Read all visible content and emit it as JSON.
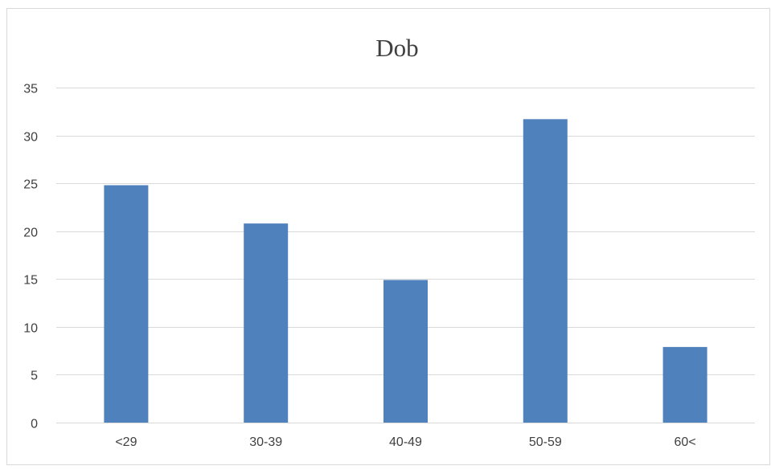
{
  "chart_data": {
    "type": "bar",
    "title": "Dob",
    "xlabel": "",
    "ylabel": "",
    "categories": [
      "<29",
      "30-39",
      "40-49",
      "50-59",
      "60<"
    ],
    "values": [
      24.8,
      20.8,
      14.9,
      31.7,
      7.9
    ],
    "yticks": [
      "0",
      "5",
      "10",
      "15",
      "20",
      "25",
      "30",
      "35"
    ],
    "ylim": [
      0,
      35
    ],
    "grid": "horizontal",
    "legend": "none",
    "colors": {
      "bar": "#4f81bd",
      "grid": "#d9d9d9",
      "text": "#404040",
      "frame": "#d9d9d9"
    }
  }
}
